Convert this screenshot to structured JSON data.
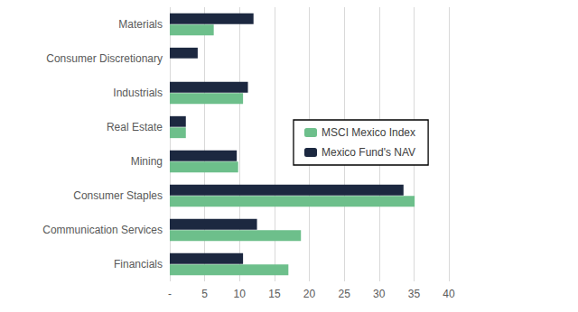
{
  "chart_data": {
    "type": "bar",
    "orientation": "horizontal",
    "categories": [
      "Financials",
      "Communication Services",
      "Consumer Staples",
      "Mining",
      "Real Estate",
      "Industrials",
      "Consumer Discretionary",
      "Materials"
    ],
    "series": [
      {
        "name": "MSCI Mexico Index",
        "color": "#6dbf8b",
        "values": [
          17.0,
          18.8,
          35.1,
          9.8,
          2.3,
          10.5,
          0,
          6.3
        ]
      },
      {
        "name": "Mexico Fund's NAV",
        "color": "#1c2840",
        "values": [
          10.5,
          12.5,
          33.5,
          9.6,
          2.3,
          11.2,
          4.0,
          12.0
        ]
      }
    ],
    "xlim": [
      0,
      40
    ],
    "xticks": [
      {
        "value": 0,
        "label": "-"
      },
      5,
      10,
      15,
      20,
      25,
      30,
      35,
      40
    ],
    "grid": true,
    "legend": "right"
  }
}
